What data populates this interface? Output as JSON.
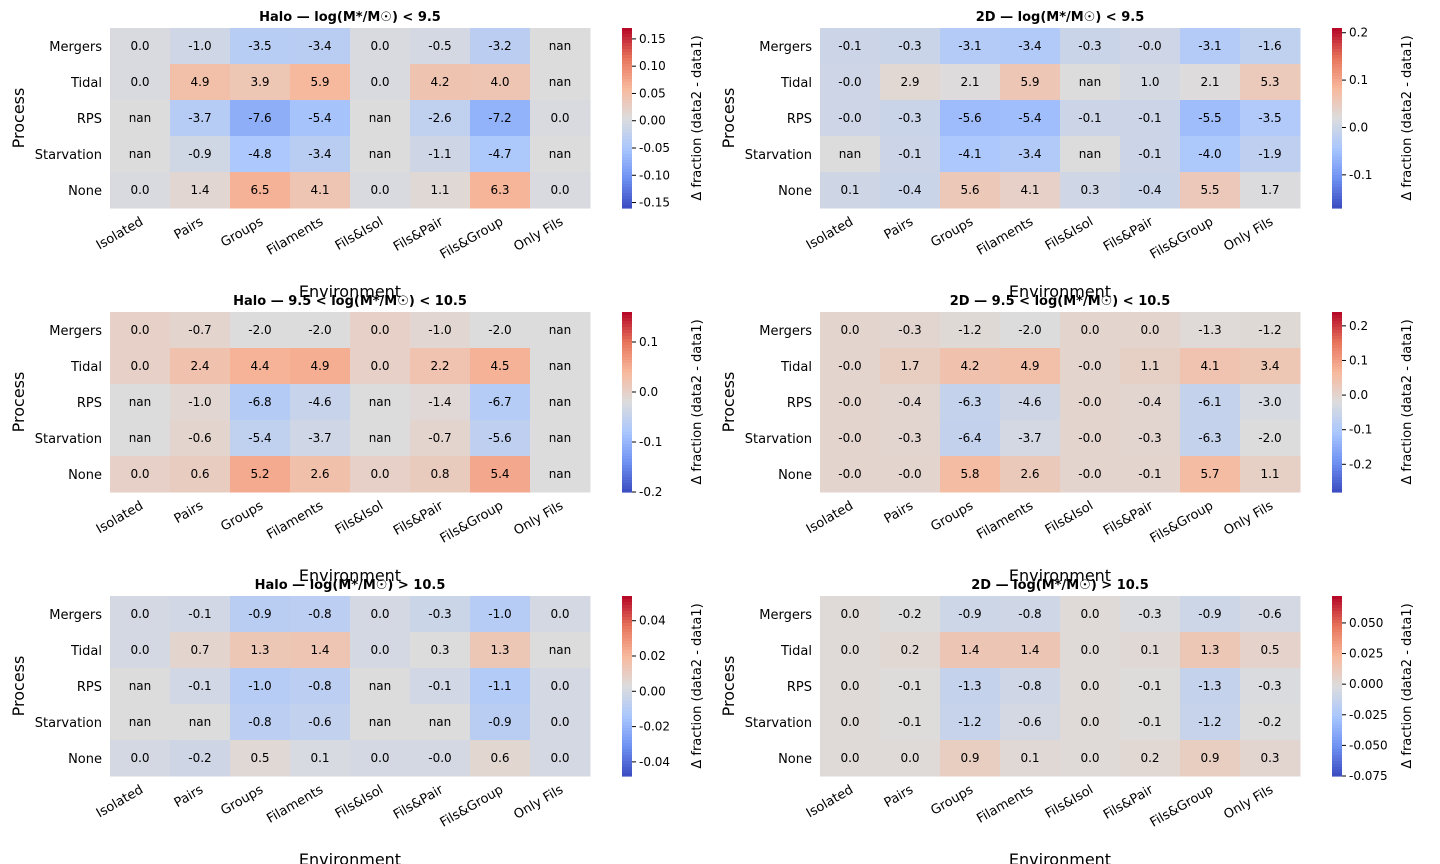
{
  "figure": {
    "xlabel": "Environment",
    "ylabel": "Process",
    "colorbar_label": "Δ fraction (data2 - data1)",
    "colormap": "coolwarm",
    "colormap_stops": [
      "#3b4cc0",
      "#6f92f3",
      "#aac7fd",
      "#dddcdc",
      "#f7b89c",
      "#e7745b",
      "#b40426"
    ]
  },
  "chart_data": [
    {
      "type": "heatmap",
      "title": "Halo — log(M*/M☉) < 9.5",
      "rows": [
        "Mergers",
        "Tidal",
        "RPS",
        "Starvation",
        "None"
      ],
      "columns": [
        "Isolated",
        "Pairs",
        "Groups",
        "Filaments",
        "Fils&Isol",
        "Fils&Pair",
        "Fils&Group",
        "Only Fils"
      ],
      "labels": [
        [
          "0.0",
          "-1.0",
          "-3.5",
          "-3.4",
          "0.0",
          "-0.5",
          "-3.2",
          "nan"
        ],
        [
          "0.0",
          "4.9",
          "3.9",
          "5.9",
          "0.0",
          "4.2",
          "4.0",
          "nan"
        ],
        [
          "nan",
          "-3.7",
          "-7.6",
          "-5.4",
          "nan",
          "-2.6",
          "-7.2",
          "0.0"
        ],
        [
          "nan",
          "-0.9",
          "-4.8",
          "-3.4",
          "nan",
          "-1.1",
          "-4.7",
          "nan"
        ],
        [
          "0.0",
          "1.4",
          "6.5",
          "4.1",
          "0.0",
          "1.1",
          "6.3",
          "0.0"
        ]
      ],
      "vmin": -0.16,
      "vmax": 0.17,
      "colorbar_ticks": [
        "0.15",
        "0.10",
        "0.05",
        "0.00",
        "-0.05",
        "-0.10",
        "-0.15"
      ]
    },
    {
      "type": "heatmap",
      "title": "2D — log(M*/M☉) < 9.5",
      "rows": [
        "Mergers",
        "Tidal",
        "RPS",
        "Starvation",
        "None"
      ],
      "columns": [
        "Isolated",
        "Pairs",
        "Groups",
        "Filaments",
        "Fils&Isol",
        "Fils&Pair",
        "Fils&Group",
        "Only Fils"
      ],
      "labels": [
        [
          "-0.1",
          "-0.3",
          "-3.1",
          "-3.4",
          "-0.3",
          "-0.0",
          "-3.1",
          "-1.6"
        ],
        [
          "-0.0",
          "2.9",
          "2.1",
          "5.9",
          "nan",
          "1.0",
          "2.1",
          "5.3"
        ],
        [
          "-0.0",
          "-0.3",
          "-5.6",
          "-5.4",
          "-0.1",
          "-0.1",
          "-5.5",
          "-3.5"
        ],
        [
          "nan",
          "-0.1",
          "-4.1",
          "-3.4",
          "nan",
          "-0.1",
          "-4.0",
          "-1.9"
        ],
        [
          "0.1",
          "-0.4",
          "5.6",
          "4.1",
          "0.3",
          "-0.4",
          "5.5",
          "1.7"
        ]
      ],
      "vmin": -0.17,
      "vmax": 0.21,
      "colorbar_ticks": [
        "0.2",
        "0.1",
        "0.0",
        "-0.1"
      ]
    },
    {
      "type": "heatmap",
      "title": "Halo — 9.5 < log(M*/M☉) < 10.5",
      "rows": [
        "Mergers",
        "Tidal",
        "RPS",
        "Starvation",
        "None"
      ],
      "columns": [
        "Isolated",
        "Pairs",
        "Groups",
        "Filaments",
        "Fils&Isol",
        "Fils&Pair",
        "Fils&Group",
        "Only Fils"
      ],
      "labels": [
        [
          "0.0",
          "-0.7",
          "-2.0",
          "-2.0",
          "0.0",
          "-1.0",
          "-2.0",
          "nan"
        ],
        [
          "0.0",
          "2.4",
          "4.4",
          "4.9",
          "0.0",
          "2.2",
          "4.5",
          "nan"
        ],
        [
          "nan",
          "-1.0",
          "-6.8",
          "-4.6",
          "nan",
          "-1.4",
          "-6.7",
          "nan"
        ],
        [
          "nan",
          "-0.6",
          "-5.4",
          "-3.7",
          "nan",
          "-0.7",
          "-5.6",
          "nan"
        ],
        [
          "0.0",
          "0.6",
          "5.2",
          "2.6",
          "0.0",
          "0.8",
          "5.4",
          "nan"
        ]
      ],
      "vmin": -0.2,
      "vmax": 0.16,
      "colorbar_ticks": [
        "0.1",
        "0.0",
        "-0.1",
        "-0.2"
      ]
    },
    {
      "type": "heatmap",
      "title": "2D — 9.5 < log(M*/M☉) < 10.5",
      "rows": [
        "Mergers",
        "Tidal",
        "RPS",
        "Starvation",
        "None"
      ],
      "columns": [
        "Isolated",
        "Pairs",
        "Groups",
        "Filaments",
        "Fils&Isol",
        "Fils&Pair",
        "Fils&Group",
        "Only Fils"
      ],
      "labels": [
        [
          "0.0",
          "-0.3",
          "-1.2",
          "-2.0",
          "0.0",
          "0.0",
          "-1.3",
          "-1.2"
        ],
        [
          "-0.0",
          "1.7",
          "4.2",
          "4.9",
          "-0.0",
          "1.1",
          "4.1",
          "3.4"
        ],
        [
          "-0.0",
          "-0.4",
          "-6.3",
          "-4.6",
          "-0.0",
          "-0.4",
          "-6.1",
          "-3.0"
        ],
        [
          "-0.0",
          "-0.3",
          "-6.4",
          "-3.7",
          "-0.0",
          "-0.3",
          "-6.3",
          "-2.0"
        ],
        [
          "-0.0",
          "-0.0",
          "5.8",
          "2.6",
          "-0.0",
          "-0.1",
          "5.7",
          "1.1"
        ]
      ],
      "vmin": -0.28,
      "vmax": 0.24,
      "colorbar_ticks": [
        "0.2",
        "0.1",
        "0.0",
        "-0.1",
        "-0.2"
      ]
    },
    {
      "type": "heatmap",
      "title": "Halo — log(M*/M☉) > 10.5",
      "rows": [
        "Mergers",
        "Tidal",
        "RPS",
        "Starvation",
        "None"
      ],
      "columns": [
        "Isolated",
        "Pairs",
        "Groups",
        "Filaments",
        "Fils&Isol",
        "Fils&Pair",
        "Fils&Group",
        "Only Fils"
      ],
      "labels": [
        [
          "0.0",
          "-0.1",
          "-0.9",
          "-0.8",
          "0.0",
          "-0.3",
          "-1.0",
          "0.0"
        ],
        [
          "0.0",
          "0.7",
          "1.3",
          "1.4",
          "0.0",
          "0.3",
          "1.3",
          "nan"
        ],
        [
          "nan",
          "-0.1",
          "-1.0",
          "-0.8",
          "nan",
          "-0.1",
          "-1.1",
          "0.0"
        ],
        [
          "nan",
          "nan",
          "-0.8",
          "-0.6",
          "nan",
          "nan",
          "-0.9",
          "0.0"
        ],
        [
          "0.0",
          "-0.2",
          "0.5",
          "0.1",
          "0.0",
          "-0.0",
          "0.6",
          "0.0"
        ]
      ],
      "vmin": -0.048,
      "vmax": 0.054,
      "colorbar_ticks": [
        "0.04",
        "0.02",
        "0.00",
        "-0.02",
        "-0.04"
      ]
    },
    {
      "type": "heatmap",
      "title": "2D — log(M*/M☉) > 10.5",
      "rows": [
        "Mergers",
        "Tidal",
        "RPS",
        "Starvation",
        "None"
      ],
      "columns": [
        "Isolated",
        "Pairs",
        "Groups",
        "Filaments",
        "Fils&Isol",
        "Fils&Pair",
        "Fils&Group",
        "Only Fils"
      ],
      "labels": [
        [
          "0.0",
          "-0.2",
          "-0.9",
          "-0.8",
          "0.0",
          "-0.3",
          "-0.9",
          "-0.6"
        ],
        [
          "0.0",
          "0.2",
          "1.4",
          "1.4",
          "0.0",
          "0.1",
          "1.3",
          "0.5"
        ],
        [
          "0.0",
          "-0.1",
          "-1.3",
          "-0.8",
          "0.0",
          "-0.1",
          "-1.3",
          "-0.3"
        ],
        [
          "0.0",
          "-0.1",
          "-1.2",
          "-0.6",
          "0.0",
          "-0.1",
          "-1.2",
          "-0.2"
        ],
        [
          "0.0",
          "0.0",
          "0.9",
          "0.1",
          "0.0",
          "0.2",
          "0.9",
          "0.3"
        ]
      ],
      "vmin": -0.075,
      "vmax": 0.072,
      "colorbar_ticks": [
        "0.050",
        "0.025",
        "0.000",
        "-0.025",
        "-0.050",
        "-0.075"
      ]
    }
  ]
}
